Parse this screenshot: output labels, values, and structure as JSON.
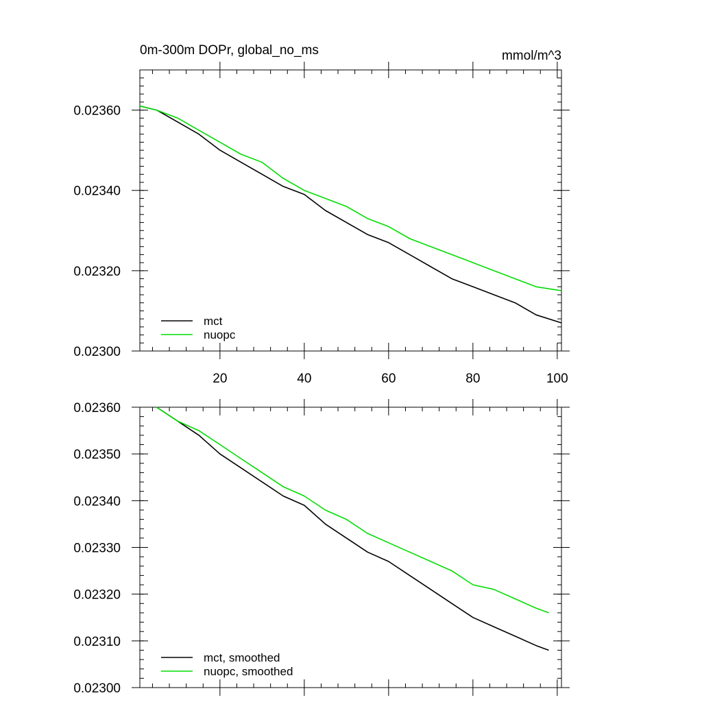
{
  "chart_data": [
    {
      "type": "line",
      "title": "0m-300m DOPr, global_no_ms",
      "units": "mmol/m^3",
      "xlim": [
        1,
        101
      ],
      "ylim": [
        0.023,
        0.0237
      ],
      "x_ticks": [
        20,
        40,
        60,
        80,
        100
      ],
      "x_tick_labels": [
        "20",
        "40",
        "60",
        "80",
        "100"
      ],
      "y_ticks": [
        0.023,
        0.0232,
        0.0234,
        0.0236
      ],
      "y_tick_labels": [
        "0.02300",
        "0.02320",
        "0.02340",
        "0.02360"
      ],
      "legend_position": "bottom-left",
      "series": [
        {
          "name": "mct",
          "color": "#000000",
          "x": [
            1,
            5,
            10,
            15,
            20,
            25,
            30,
            35,
            40,
            45,
            50,
            55,
            60,
            65,
            70,
            75,
            80,
            85,
            90,
            95,
            101
          ],
          "y": [
            0.02361,
            0.0236,
            0.02357,
            0.02354,
            0.0235,
            0.02347,
            0.02344,
            0.02341,
            0.02339,
            0.02335,
            0.02332,
            0.02329,
            0.02327,
            0.02324,
            0.02321,
            0.02318,
            0.02316,
            0.02314,
            0.02312,
            0.02309,
            0.02307
          ]
        },
        {
          "name": "nuopc",
          "color": "#00dd00",
          "x": [
            1,
            5,
            10,
            15,
            20,
            25,
            30,
            35,
            40,
            45,
            50,
            55,
            60,
            65,
            70,
            75,
            80,
            85,
            90,
            95,
            101
          ],
          "y": [
            0.02361,
            0.0236,
            0.02358,
            0.02355,
            0.02352,
            0.02349,
            0.02347,
            0.02343,
            0.0234,
            0.02338,
            0.02336,
            0.02333,
            0.02331,
            0.02328,
            0.02326,
            0.02324,
            0.02322,
            0.0232,
            0.02318,
            0.02316,
            0.02315
          ]
        }
      ]
    },
    {
      "type": "line",
      "title": "",
      "xlim": [
        1,
        101
      ],
      "ylim": [
        0.023,
        0.0236
      ],
      "x_ticks": [
        20,
        40,
        60,
        80,
        100
      ],
      "x_tick_labels": [],
      "y_ticks": [
        0.023,
        0.0231,
        0.0232,
        0.0233,
        0.0234,
        0.0235,
        0.0236
      ],
      "y_tick_labels": [
        "0.02300",
        "0.02310",
        "0.02320",
        "0.02330",
        "0.02340",
        "0.02350",
        "0.02360"
      ],
      "legend_position": "bottom-left",
      "series": [
        {
          "name": "mct, smoothed",
          "color": "#000000",
          "x": [
            5,
            10,
            15,
            20,
            25,
            30,
            35,
            40,
            45,
            50,
            55,
            60,
            65,
            70,
            75,
            80,
            85,
            90,
            95,
            98
          ],
          "y": [
            0.0236,
            0.02357,
            0.02354,
            0.0235,
            0.02347,
            0.02344,
            0.02341,
            0.02339,
            0.02335,
            0.02332,
            0.02329,
            0.02327,
            0.02324,
            0.02321,
            0.02318,
            0.02315,
            0.02313,
            0.02311,
            0.02309,
            0.02308
          ]
        },
        {
          "name": "nuopc, smoothed",
          "color": "#00dd00",
          "x": [
            5,
            10,
            15,
            20,
            25,
            30,
            35,
            40,
            45,
            50,
            55,
            60,
            65,
            70,
            75,
            80,
            85,
            90,
            95,
            98
          ],
          "y": [
            0.0236,
            0.02357,
            0.02355,
            0.02352,
            0.02349,
            0.02346,
            0.02343,
            0.02341,
            0.02338,
            0.02336,
            0.02333,
            0.02331,
            0.02329,
            0.02327,
            0.02325,
            0.02322,
            0.02321,
            0.02319,
            0.02317,
            0.02316
          ]
        }
      ]
    }
  ]
}
